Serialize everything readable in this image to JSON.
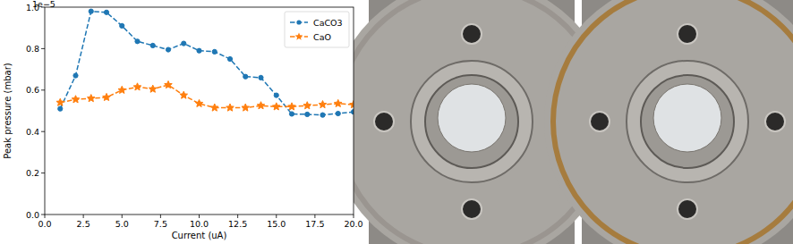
{
  "chart_data": {
    "type": "line",
    "x_label": "Current (uA)",
    "y_label": "Peak pressure (mbar)",
    "y_offset_label": "1e−5",
    "x": [
      1,
      2,
      3,
      4,
      5,
      6,
      7,
      8,
      9,
      10,
      11,
      12,
      13,
      14,
      15,
      16,
      17,
      18,
      19,
      20
    ],
    "series": [
      {
        "name": "CaCO3",
        "color": "#1f77b4",
        "marker": "circle",
        "line_style": "dashed",
        "values": [
          0.51,
          0.67,
          0.98,
          0.975,
          0.91,
          0.835,
          0.815,
          0.795,
          0.825,
          0.79,
          0.785,
          0.75,
          0.665,
          0.66,
          0.575,
          0.485,
          0.483,
          0.48,
          0.487,
          0.495
        ]
      },
      {
        "name": "CaO",
        "color": "#ff7f0e",
        "marker": "star",
        "line_style": "dashed",
        "values": [
          0.54,
          0.555,
          0.56,
          0.565,
          0.6,
          0.615,
          0.605,
          0.625,
          0.575,
          0.535,
          0.515,
          0.515,
          0.515,
          0.525,
          0.52,
          0.52,
          0.525,
          0.53,
          0.535,
          0.53
        ]
      }
    ],
    "xlim": [
      0,
      20
    ],
    "xticks": [
      {
        "value": 0,
        "label": "0.0"
      },
      2.5,
      {
        "value": 5,
        "label": "5.0"
      },
      7.5,
      {
        "value": 10,
        "label": "10.0"
      },
      12.5,
      {
        "value": 15,
        "label": "15.0"
      },
      17.5,
      {
        "value": 20,
        "label": "20.0"
      }
    ],
    "ylim": [
      0,
      1
    ],
    "yticks": [
      {
        "value": 0,
        "label": "0.0"
      },
      0.2,
      0.4,
      0.6,
      0.8,
      {
        "value": 1,
        "label": "1.0"
      }
    ],
    "legend": "upper right",
    "grid": false
  }
}
